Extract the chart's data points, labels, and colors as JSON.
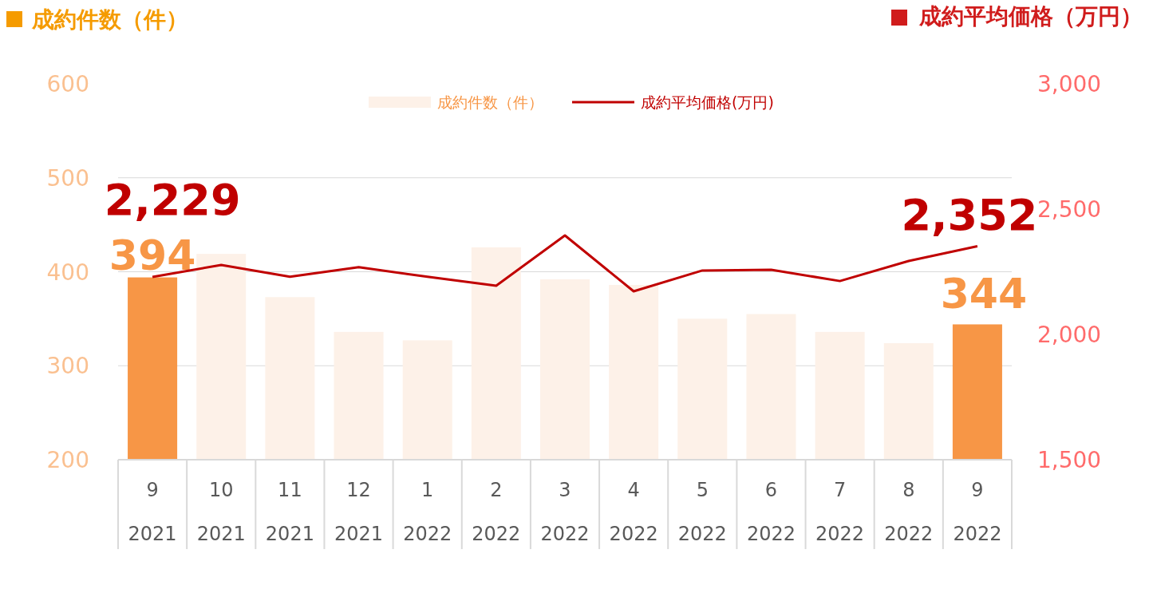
{
  "chart_data": {
    "type": "bar",
    "ylabel": "成約件数（件）",
    "y2label": "成約平均価格（万円）",
    "categories": [
      "9\n2021",
      "10\n2021",
      "11\n2021",
      "12\n2021",
      "1\n2022",
      "2\n2022",
      "3\n2022",
      "4\n2022",
      "5\n2022",
      "6\n2022",
      "7\n2022",
      "8\n2022",
      "9\n2022"
    ],
    "series": [
      {
        "name": "成約件数（件）",
        "color": "#fdf1e8",
        "colors": [
          "#f79646",
          "#fdf1e8",
          "#fdf1e8",
          "#fdf1e8",
          "#fdf1e8",
          "#fdf1e8",
          "#fdf1e8",
          "#fdf1e8",
          "#fdf1e8",
          "#fdf1e8",
          "#fdf1e8",
          "#fdf1e8",
          "#f79646"
        ],
        "values": [
          394,
          419,
          373,
          336,
          327,
          426,
          392,
          386,
          350,
          355,
          336,
          324,
          344
        ],
        "value_labels": [
          "394",
          null,
          null,
          null,
          null,
          null,
          null,
          null,
          null,
          null,
          null,
          null,
          "344"
        ]
      },
      {
        "name": "成約平均価格(万円)",
        "type": "line",
        "axis": "y2",
        "color": "#c00000",
        "values": [
          2229,
          2277,
          2230,
          2268,
          2230,
          2194,
          2395,
          2172,
          2255,
          2258,
          2213,
          2293,
          2352
        ],
        "value_labels": [
          "2,229",
          null,
          null,
          null,
          null,
          null,
          null,
          null,
          null,
          null,
          null,
          null,
          "2,352"
        ]
      }
    ],
    "ylim": [
      200,
      600
    ],
    "yticks": [
      200,
      300,
      400,
      500,
      600
    ],
    "y2lim": [
      1500,
      3000
    ],
    "y2ticks": [
      {
        "value": 1500,
        "label": "1,500"
      },
      {
        "value": 2000,
        "label": "2,000"
      },
      {
        "value": 2500,
        "label": "2,500"
      },
      {
        "value": 3000,
        "label": "3,000"
      }
    ],
    "grid": "y",
    "legend": "top"
  }
}
